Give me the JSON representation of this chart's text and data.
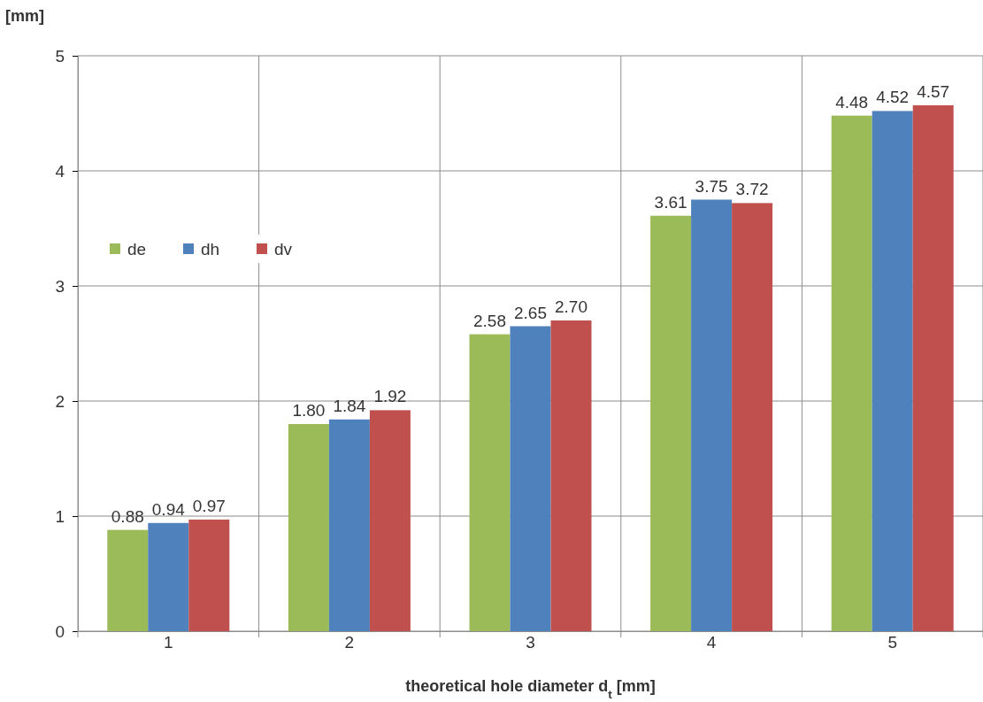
{
  "chart_data": {
    "type": "bar",
    "ylabel": "[mm]",
    "xlabel": "theoretical hole diameter d$_{t}$ [mm]",
    "categories": [
      "1",
      "2",
      "3",
      "4",
      "5"
    ],
    "series": [
      {
        "name": "de",
        "color": "#9bbb59",
        "values": [
          0.88,
          1.8,
          2.58,
          3.61,
          4.48
        ],
        "value_labels": [
          "0.88",
          "1.80",
          "2.58",
          "3.61",
          "4.48"
        ]
      },
      {
        "name": "dh",
        "color": "#4f81bd",
        "values": [
          0.94,
          1.84,
          2.65,
          3.75,
          4.52
        ],
        "value_labels": [
          "0.94",
          "1.84",
          "2.65",
          "3.75",
          "4.52"
        ]
      },
      {
        "name": "dv",
        "color": "#c0504d",
        "values": [
          0.97,
          1.92,
          2.7,
          3.72,
          4.57
        ],
        "value_labels": [
          "0.97",
          "1.92",
          "2.70",
          "3.72",
          "4.57"
        ]
      }
    ],
    "ylim": [
      0,
      5
    ],
    "yticks": [
      0,
      1,
      2,
      3,
      4,
      5
    ],
    "grid": true,
    "legend": "left"
  }
}
